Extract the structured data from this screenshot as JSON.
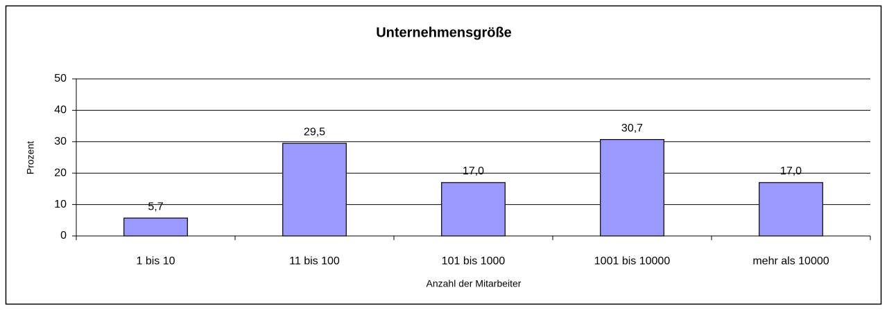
{
  "chart_data": {
    "type": "bar",
    "title": "Unternehmensgröße",
    "x_label": "Anzahl der Mitarbeiter",
    "y_label": "Prozent",
    "categories": [
      "1 bis 10",
      "11 bis 100",
      "101 bis 1000",
      "1001 bis 10000",
      "mehr als 10000"
    ],
    "values": [
      5.7,
      29.5,
      17.0,
      30.7,
      17.0
    ],
    "value_labels": [
      "5,7",
      "29,5",
      "17,0",
      "30,7",
      "17,0"
    ],
    "color": "#9999ff",
    "ylim": [
      0,
      50
    ],
    "yticks": [
      0,
      10,
      20,
      30,
      40,
      50
    ],
    "grid": true
  }
}
